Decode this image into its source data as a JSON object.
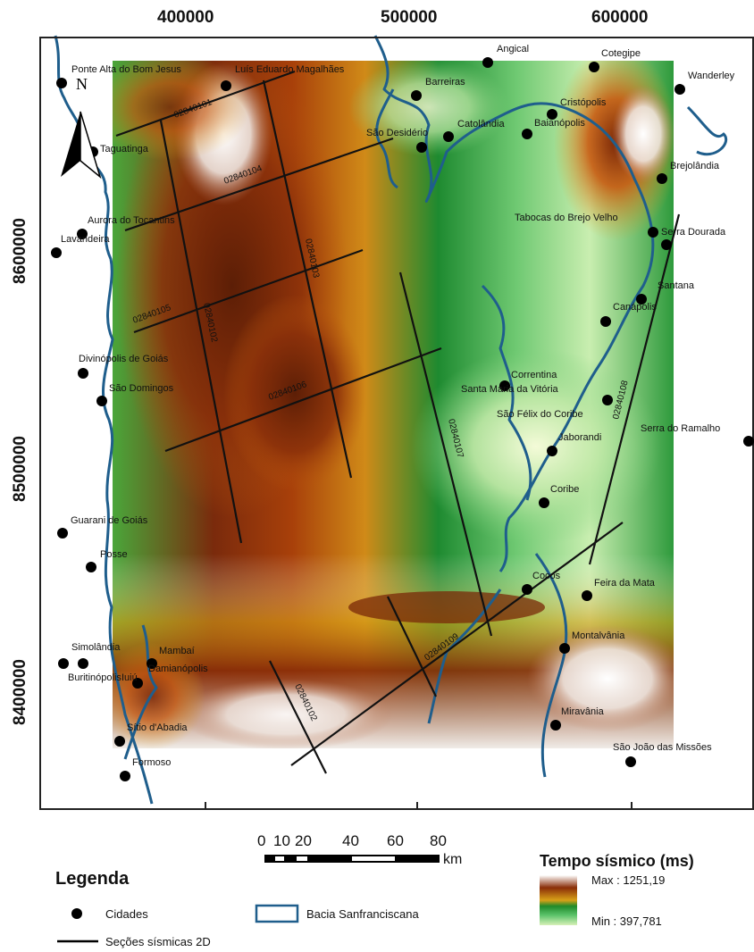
{
  "map": {
    "x_ticks": [
      "400000",
      "500000",
      "600000"
    ],
    "y_ticks": [
      "8600000",
      "8500000",
      "8400000"
    ],
    "north_label": "N",
    "cities": [
      "Ponte Alta do Bom Jesus",
      "Luís Eduardo Magalhães",
      "Angical",
      "Cotegipe",
      "Wanderley",
      "Barreiras",
      "Cristópolis",
      "Catolândia",
      "São Desidério",
      "Baianópolis",
      "Taguatinga",
      "Brejolândia",
      "Aurora do Tocantins",
      "Lavandeira",
      "Tabocas do Brejo Velho",
      "Serra Dourada",
      "Santana",
      "Canápolis",
      "Divinópolis de Goiás",
      "São Domingos",
      "Correntina",
      "Santa Maria da Vitória",
      "São Félix do Coribe",
      "Serra do Ramalho",
      "Jaborandi",
      "Coribe",
      "Guarani de Goiás",
      "Posse",
      "Cocos",
      "Feira da Mata",
      "Simolândia",
      "Mambaí",
      "Damianópolis",
      "Buritinópolis",
      "Montalvânia",
      "Iuiú",
      "Miravânia",
      "Sítio d'Abadia",
      "São João das Missões",
      "Formoso"
    ],
    "sections": [
      "02840101",
      "02840102",
      "02840103",
      "02840104",
      "02840105",
      "02840106",
      "02840107",
      "02840108",
      "02840109",
      "02840102"
    ]
  },
  "scale": {
    "ticks": [
      "0",
      "10",
      "20",
      "40",
      "60",
      "80"
    ],
    "unit": "km"
  },
  "legend": {
    "title": "Legenda",
    "cities_label": "Cidades",
    "basin_label": "Bacia Sanfranciscana",
    "sections_label": "Seções sísmicas 2D"
  },
  "colorbar": {
    "title": "Tempo sísmico (ms)",
    "max_label": "Max : 1251,19",
    "min_label": "Min : 397,781",
    "colors": [
      "#ffffff",
      "#8a2e08",
      "#c96a10",
      "#e8a020",
      "#1f8a2a",
      "#5cc36a",
      "#d8f0b8"
    ]
  },
  "colors": {
    "river": "#1f5e8c",
    "frame": "#222222"
  }
}
